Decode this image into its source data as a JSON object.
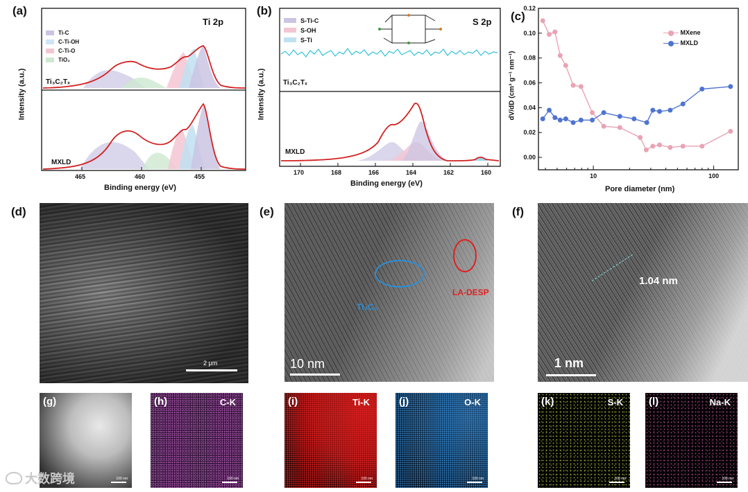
{
  "panels": {
    "a": {
      "label": "(a)",
      "title": "Ti 2p",
      "ylabel": "Intensity (a.u.)",
      "xlabel": "Binding energy (eV)",
      "ticks": [
        "465",
        "460",
        "455"
      ],
      "legend": [
        "Ti-C",
        "C-Ti-OH",
        "C-Ti-O",
        "TiO₂"
      ],
      "sample_top": "Ti₃C₂Tₓ",
      "sample_bottom": "MXLD"
    },
    "b": {
      "label": "(b)",
      "title": "S 2p",
      "ylabel": "Intensity (a.u.)",
      "xlabel": "Binding energy (eV)",
      "ticks": [
        "170",
        "168",
        "166",
        "164",
        "162",
        "160"
      ],
      "legend": [
        "S-Ti-C",
        "S-OH",
        "S-Ti"
      ],
      "sample_top": "Ti₃C₂Tₓ",
      "sample_bottom": "MXLD"
    },
    "c": {
      "label": "(c)"
    },
    "d": {
      "label": "(d)",
      "scale": "2 μm"
    },
    "e": {
      "label": "(e)",
      "scale": "10 nm",
      "ann1": "Ti₃C₂",
      "ann2": "LA-DESP"
    },
    "f": {
      "label": "(f)",
      "scale": "1 nm",
      "spacing": "1.04 nm"
    },
    "maps": [
      {
        "label": "(g)",
        "element": "",
        "scale": "100 nm"
      },
      {
        "label": "(h)",
        "element": "C-K",
        "scale": "100 nm"
      },
      {
        "label": "(i)",
        "element": "Ti-K",
        "scale": "100 nm"
      },
      {
        "label": "(j)",
        "element": "O-K",
        "scale": "100 nm"
      },
      {
        "label": "(k)",
        "element": "S-K",
        "scale": "100 nm"
      },
      {
        "label": "(l)",
        "element": "Na-K",
        "scale": "100 nm"
      }
    ],
    "watermark": "大数跨境"
  },
  "chart_data": {
    "type": "line",
    "xlabel": "Pore diameter (nm)",
    "ylabel": "dV/dD (cm³ g⁻¹ nm⁻¹)",
    "xscale": "log",
    "xlim": [
      3.5,
      160
    ],
    "ylim": [
      -0.01,
      0.12
    ],
    "yticks": [
      "0.00",
      "0.02",
      "0.04",
      "0.06",
      "0.08",
      "0.10",
      "0.12"
    ],
    "xticks": [
      "10",
      "100"
    ],
    "legend_position": "top-right",
    "series": [
      {
        "name": "MXene",
        "color": "#e9a3b4",
        "x": [
          3.8,
          4.3,
          4.8,
          5.3,
          5.9,
          6.8,
          7.9,
          9.8,
          12.2,
          16.6,
          24.5,
          27.5,
          31.2,
          35.5,
          43.5,
          55.5,
          80.0,
          138.0
        ],
        "y": [
          0.11,
          0.099,
          0.101,
          0.082,
          0.074,
          0.058,
          0.057,
          0.036,
          0.025,
          0.024,
          0.016,
          0.006,
          0.009,
          0.01,
          0.008,
          0.009,
          0.009,
          0.021
        ]
      },
      {
        "name": "MXLD",
        "color": "#4f74d1",
        "x": [
          3.8,
          4.3,
          4.8,
          5.3,
          5.9,
          6.8,
          7.9,
          9.8,
          12.2,
          16.6,
          21.8,
          27.8,
          31.2,
          35.5,
          43.5,
          55.5,
          80.0,
          138.0
        ],
        "y": [
          0.031,
          0.038,
          0.032,
          0.03,
          0.031,
          0.028,
          0.03,
          0.03,
          0.036,
          0.033,
          0.031,
          0.028,
          0.038,
          0.037,
          0.038,
          0.043,
          0.055,
          0.057
        ]
      }
    ]
  }
}
